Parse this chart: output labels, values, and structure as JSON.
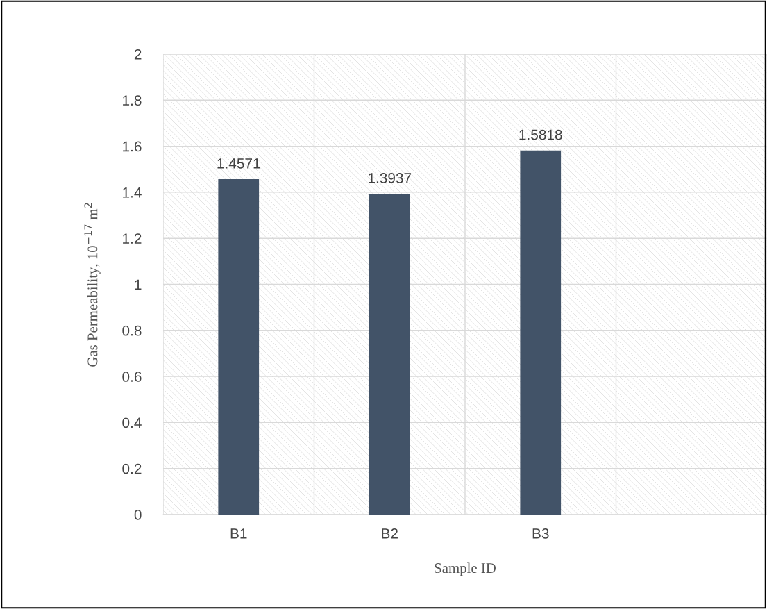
{
  "chart_data": {
    "type": "bar",
    "xlabel": "Sample ID",
    "ylabel": "Gas Permeability, 10$^{−17}$ m$^{2}$",
    "categories": [
      "B1",
      "B2",
      "B3"
    ],
    "values": [
      1.4571,
      1.3937,
      1.5818
    ],
    "color": "#425368",
    "ylim": [
      0,
      2
    ],
    "yticks": [
      0,
      {
        "value": 0.2,
        "label": "0.2"
      },
      {
        "value": 0.4,
        "label": "0.4"
      },
      {
        "value": 0.6,
        "label": "0.6"
      },
      {
        "value": 0.8,
        "label": "0.8"
      },
      1,
      {
        "value": 1.2,
        "label": "1.2"
      },
      {
        "value": 1.4,
        "label": "1.4"
      },
      {
        "value": 1.6,
        "label": "1.6"
      },
      {
        "value": 1.8,
        "label": "1.8"
      },
      2
    ],
    "grid": true,
    "data_labels": true,
    "legend": false
  }
}
